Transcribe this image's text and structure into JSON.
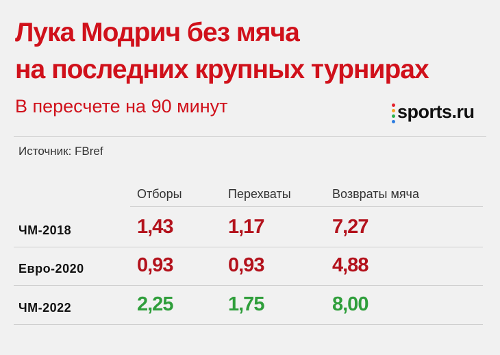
{
  "header": {
    "title_lines": [
      "Лука Модрич без мяча",
      "на последних крупных турнирах"
    ],
    "subtitle": "В пересчете на 90 минут",
    "logo": "sports.ru"
  },
  "source": "Источник: FBref",
  "table": {
    "columns": [
      "Отборы",
      "Перехваты",
      "Возвраты мяча"
    ],
    "rows": [
      {
        "label": "ЧМ-2018",
        "values": [
          "1,43",
          "1,17",
          "7,27"
        ]
      },
      {
        "label": "Евро-2020",
        "values": [
          "0,93",
          "0,93",
          "4,88"
        ]
      },
      {
        "label": "ЧМ-2022",
        "values": [
          "2,25",
          "1,75",
          "8,00"
        ]
      }
    ]
  }
}
